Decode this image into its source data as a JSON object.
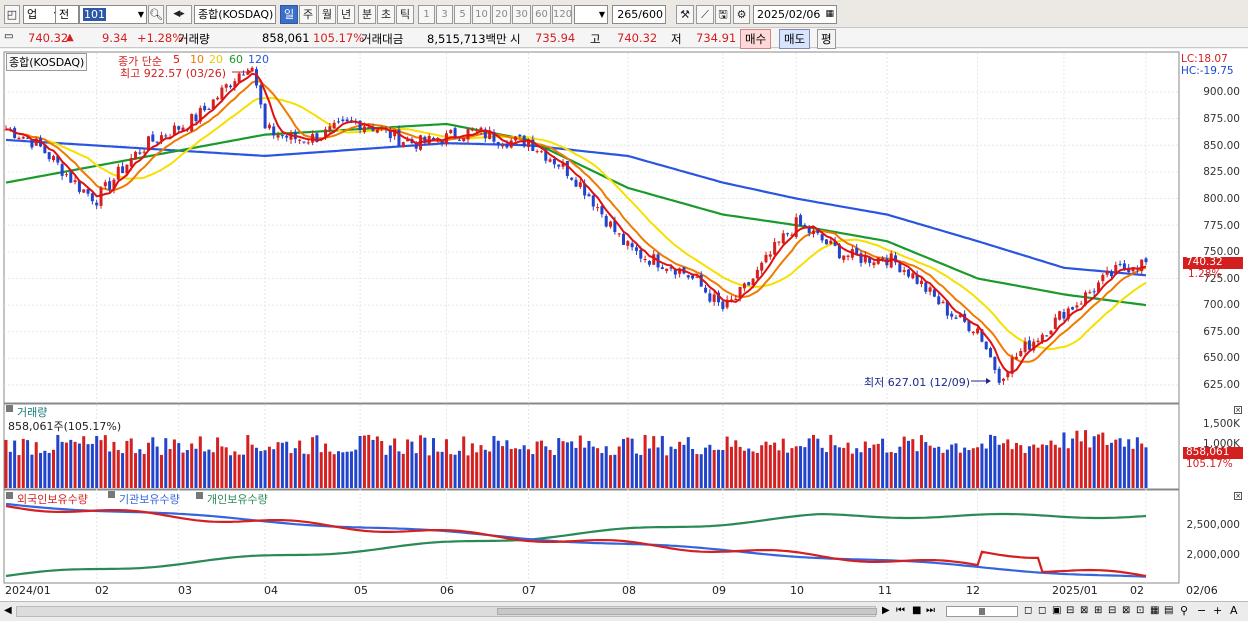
{
  "toolbar": {
    "market": "업",
    "period_mode": "전",
    "code": "101",
    "index_name": "종합(KOSDAQ)",
    "periods": [
      "일",
      "주",
      "월",
      "년",
      "분",
      "초",
      "틱"
    ],
    "selected_period": "일",
    "intervals": [
      "1",
      "3",
      "5",
      "10",
      "20",
      "30",
      "60",
      "120"
    ],
    "count": "265",
    "count_total": "/600",
    "date": "2025/02/06"
  },
  "info": {
    "price": "740.32",
    "change_arrow": "▲",
    "change": "9.34",
    "change_pct": "+1.28%",
    "volume_label": "거래량",
    "volume": "858,061",
    "volume_pct": "105.17%",
    "amount_label": "거래대금",
    "amount": "8,515,713백만",
    "open_label": "시",
    "open": "735.94",
    "high_label": "고",
    "high": "740.32",
    "low_label": "저",
    "low": "734.91",
    "buy_label": "매수",
    "sell_label": "매도",
    "eval_label": "평"
  },
  "price_pane": {
    "title": "종합(KOSDAQ)",
    "ma_label": "종가 단순",
    "ma_periods": [
      "5",
      "10",
      "20",
      "60",
      "120"
    ],
    "high_note": "최고 922.57 (03/26)",
    "low_note": "최저 627.01 (12/09)",
    "lc": "LC:18.07",
    "hc": "HC:-19.75",
    "y_ticks": [
      "900.00",
      "875.00",
      "850.00",
      "825.00",
      "800.00",
      "775.00",
      "750.00",
      "725.00",
      "700.00",
      "675.00",
      "650.00",
      "625.00"
    ],
    "last_price": "740.32",
    "last_pct": "1.28%"
  },
  "volume_pane": {
    "title": "거래량",
    "value_note": "858,061주(105.17%)",
    "y_ticks": [
      "1,500K",
      "1,000K"
    ],
    "last_value": "858,061",
    "last_pct": "105.17%"
  },
  "holdings_pane": {
    "series": [
      "외국인보유수량",
      "기관보유수량",
      "개인보유수량"
    ],
    "y_ticks": [
      "2,500,000",
      "2,000,000"
    ]
  },
  "x_axis": [
    "2024/01",
    "02",
    "03",
    "04",
    "05",
    "06",
    "07",
    "08",
    "09",
    "10",
    "11",
    "12",
    "2025/01",
    "02",
    "02/06"
  ],
  "colors": {
    "ma5": "#e01010",
    "ma10": "#f07a00",
    "ma20": "#f5e000",
    "ma60": "#1a9a2a",
    "ma120": "#2a55e0",
    "up": "#d42020",
    "down": "#2244cc",
    "foreign": "#d42020",
    "institution": "#3366dd",
    "individual": "#2a8a55"
  },
  "chart_data": {
    "type": "line",
    "title": "종합(KOSDAQ)",
    "series": [
      {
        "name": "종가",
        "x": [
          "2024/01",
          "02",
          "03",
          "03/26",
          "04",
          "05",
          "06",
          "07",
          "08",
          "09",
          "10",
          "11",
          "12",
          "12/09",
          "2025/01",
          "02/06"
        ],
        "values": [
          865,
          805,
          870,
          922.57,
          860,
          865,
          855,
          860,
          760,
          700,
          770,
          740,
          680,
          627.01,
          700,
          740.32
        ]
      },
      {
        "name": "120",
        "x": [
          "2024/01",
          "04",
          "06",
          "07",
          "08",
          "09",
          "10",
          "11",
          "12",
          "2025/01",
          "02/06"
        ],
        "values": [
          855,
          840,
          852,
          850,
          840,
          815,
          800,
          785,
          760,
          735,
          728
        ]
      },
      {
        "name": "60",
        "x": [
          "2024/01",
          "04",
          "06",
          "07",
          "08",
          "09",
          "10",
          "11",
          "12",
          "2025/01",
          "02/06"
        ],
        "values": [
          815,
          860,
          870,
          855,
          810,
          785,
          775,
          760,
          725,
          710,
          700
        ]
      }
    ],
    "ylim": [
      625,
      900
    ]
  }
}
